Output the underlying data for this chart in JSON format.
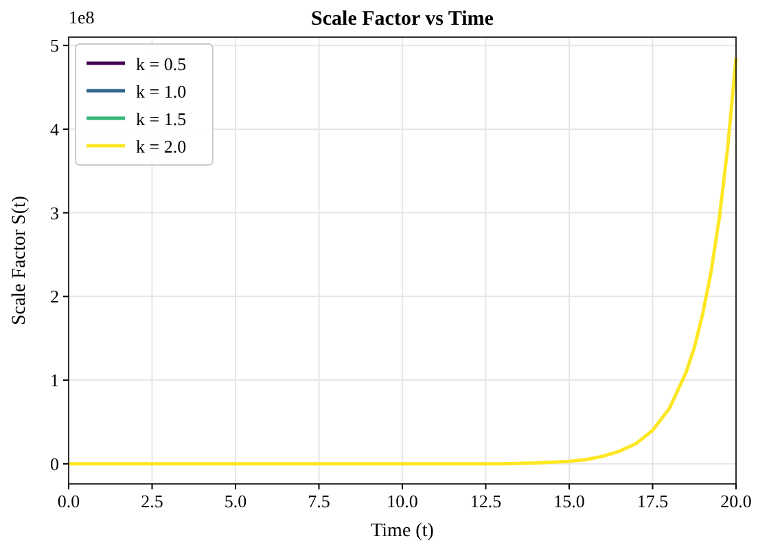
{
  "chart_data": {
    "type": "line",
    "title": "Scale Factor vs Time",
    "xlabel": "Time (t)",
    "ylabel": "Scale Factor S(t)",
    "annotations": [
      "1e8"
    ],
    "x": [
      0,
      5,
      10,
      12,
      13,
      14,
      15,
      15.5,
      16,
      16.5,
      17,
      17.5,
      18,
      18.5,
      18.75,
      19,
      19.25,
      19.5,
      19.75,
      20
    ],
    "series": [
      {
        "name": "k = 0.5",
        "color": "#440154",
        "values": [
          null,
          null,
          null,
          null,
          null,
          null,
          null,
          null,
          null,
          null,
          null,
          null,
          null,
          null,
          null,
          null,
          null,
          null,
          null,
          null
        ]
      },
      {
        "name": "k = 1.0",
        "color": "#31688e",
        "values": [
          null,
          null,
          null,
          null,
          null,
          null,
          null,
          null,
          null,
          null,
          null,
          null,
          null,
          null,
          null,
          null,
          null,
          null,
          null,
          null
        ]
      },
      {
        "name": "k = 1.5",
        "color": "#35b779",
        "values": [
          null,
          null,
          null,
          null,
          null,
          null,
          null,
          null,
          null,
          null,
          null,
          null,
          null,
          null,
          null,
          null,
          null,
          null,
          null,
          null
        ]
      },
      {
        "name": "k = 2.0",
        "color": "#fde725",
        "values": [
          0,
          0,
          0,
          0,
          0,
          0.01,
          0.03,
          0.05,
          0.09,
          0.15,
          0.24,
          0.4,
          0.66,
          1.09,
          1.39,
          1.79,
          2.29,
          2.94,
          3.78,
          4.85
        ]
      }
    ],
    "xlim": [
      0,
      20
    ],
    "xticks": [
      {
        "value": 0,
        "label": "0.0"
      },
      {
        "value": 2.5,
        "label": "2.5"
      },
      {
        "value": 5,
        "label": "5.0"
      },
      {
        "value": 7.5,
        "label": "7.5"
      },
      {
        "value": 10,
        "label": "10.0"
      },
      {
        "value": 12.5,
        "label": "12.5"
      },
      {
        "value": 15,
        "label": "15.0"
      },
      {
        "value": 17.5,
        "label": "17.5"
      },
      {
        "value": 20,
        "label": "20.0"
      }
    ],
    "ylim": [
      -0.24,
      5.1
    ],
    "yticks": [
      0,
      1,
      2,
      3,
      4,
      5
    ],
    "grid": true,
    "legend": "top left",
    "line_style": "solid",
    "marker": "none"
  }
}
